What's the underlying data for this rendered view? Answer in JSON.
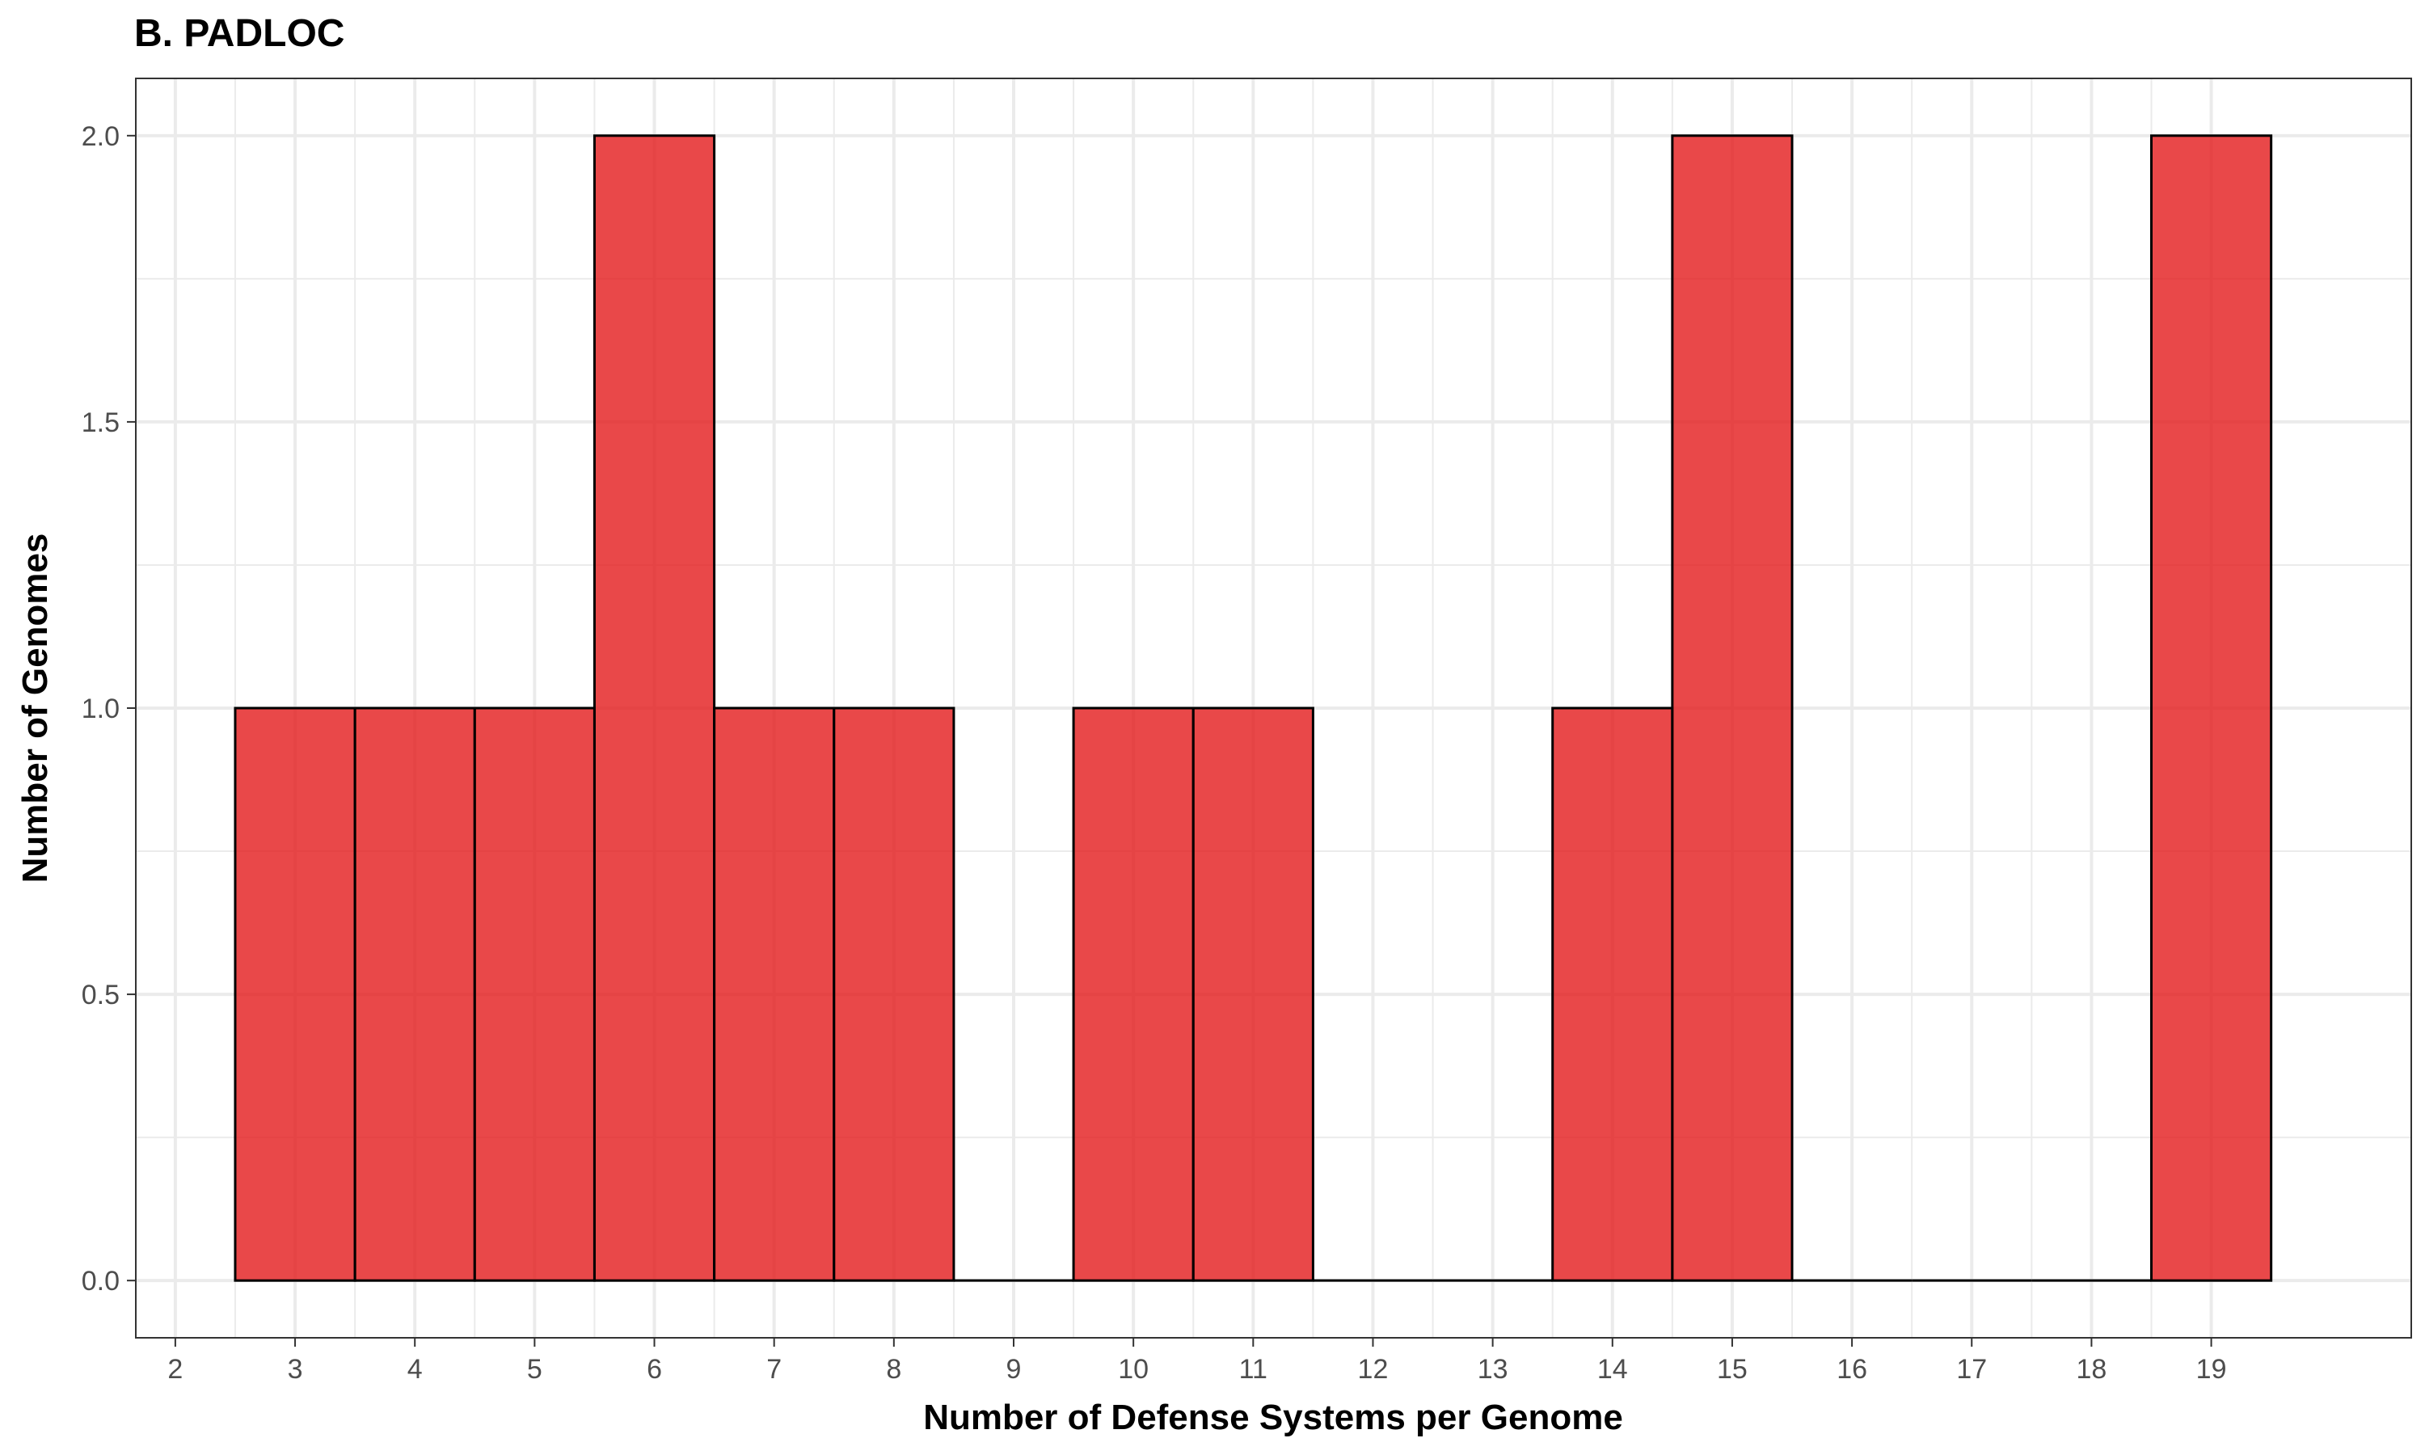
{
  "chart_data": {
    "type": "bar",
    "title": "B. PADLOC",
    "xlabel": "Number of Defense Systems per Genome",
    "ylabel": "Number of Genomes",
    "x": [
      3,
      4,
      5,
      6,
      7,
      8,
      9,
      10,
      11,
      12,
      13,
      14,
      15,
      16,
      17,
      18,
      19
    ],
    "values": [
      1,
      1,
      1,
      2,
      1,
      1,
      0,
      1,
      1,
      0,
      0,
      1,
      2,
      0,
      0,
      0,
      2
    ],
    "bin_width": 1,
    "xlim": [
      1.67,
      20.67
    ],
    "ylim": [
      -0.1,
      2.1
    ],
    "x_ticks": [
      2,
      3,
      4,
      5,
      6,
      7,
      8,
      9,
      10,
      11,
      12,
      13,
      14,
      15,
      16,
      17,
      18,
      19
    ],
    "y_ticks": [
      0.0,
      0.5,
      1.0,
      1.5,
      2.0
    ],
    "y_tick_labels": [
      "0.0",
      "0.5",
      "1.0",
      "1.5",
      "2.0"
    ],
    "grid": true,
    "legend": "none",
    "colors": {
      "fill": "#e41a1c",
      "outline": "#000000",
      "grid": "#ebebeb",
      "panel_border": "#333333"
    }
  }
}
